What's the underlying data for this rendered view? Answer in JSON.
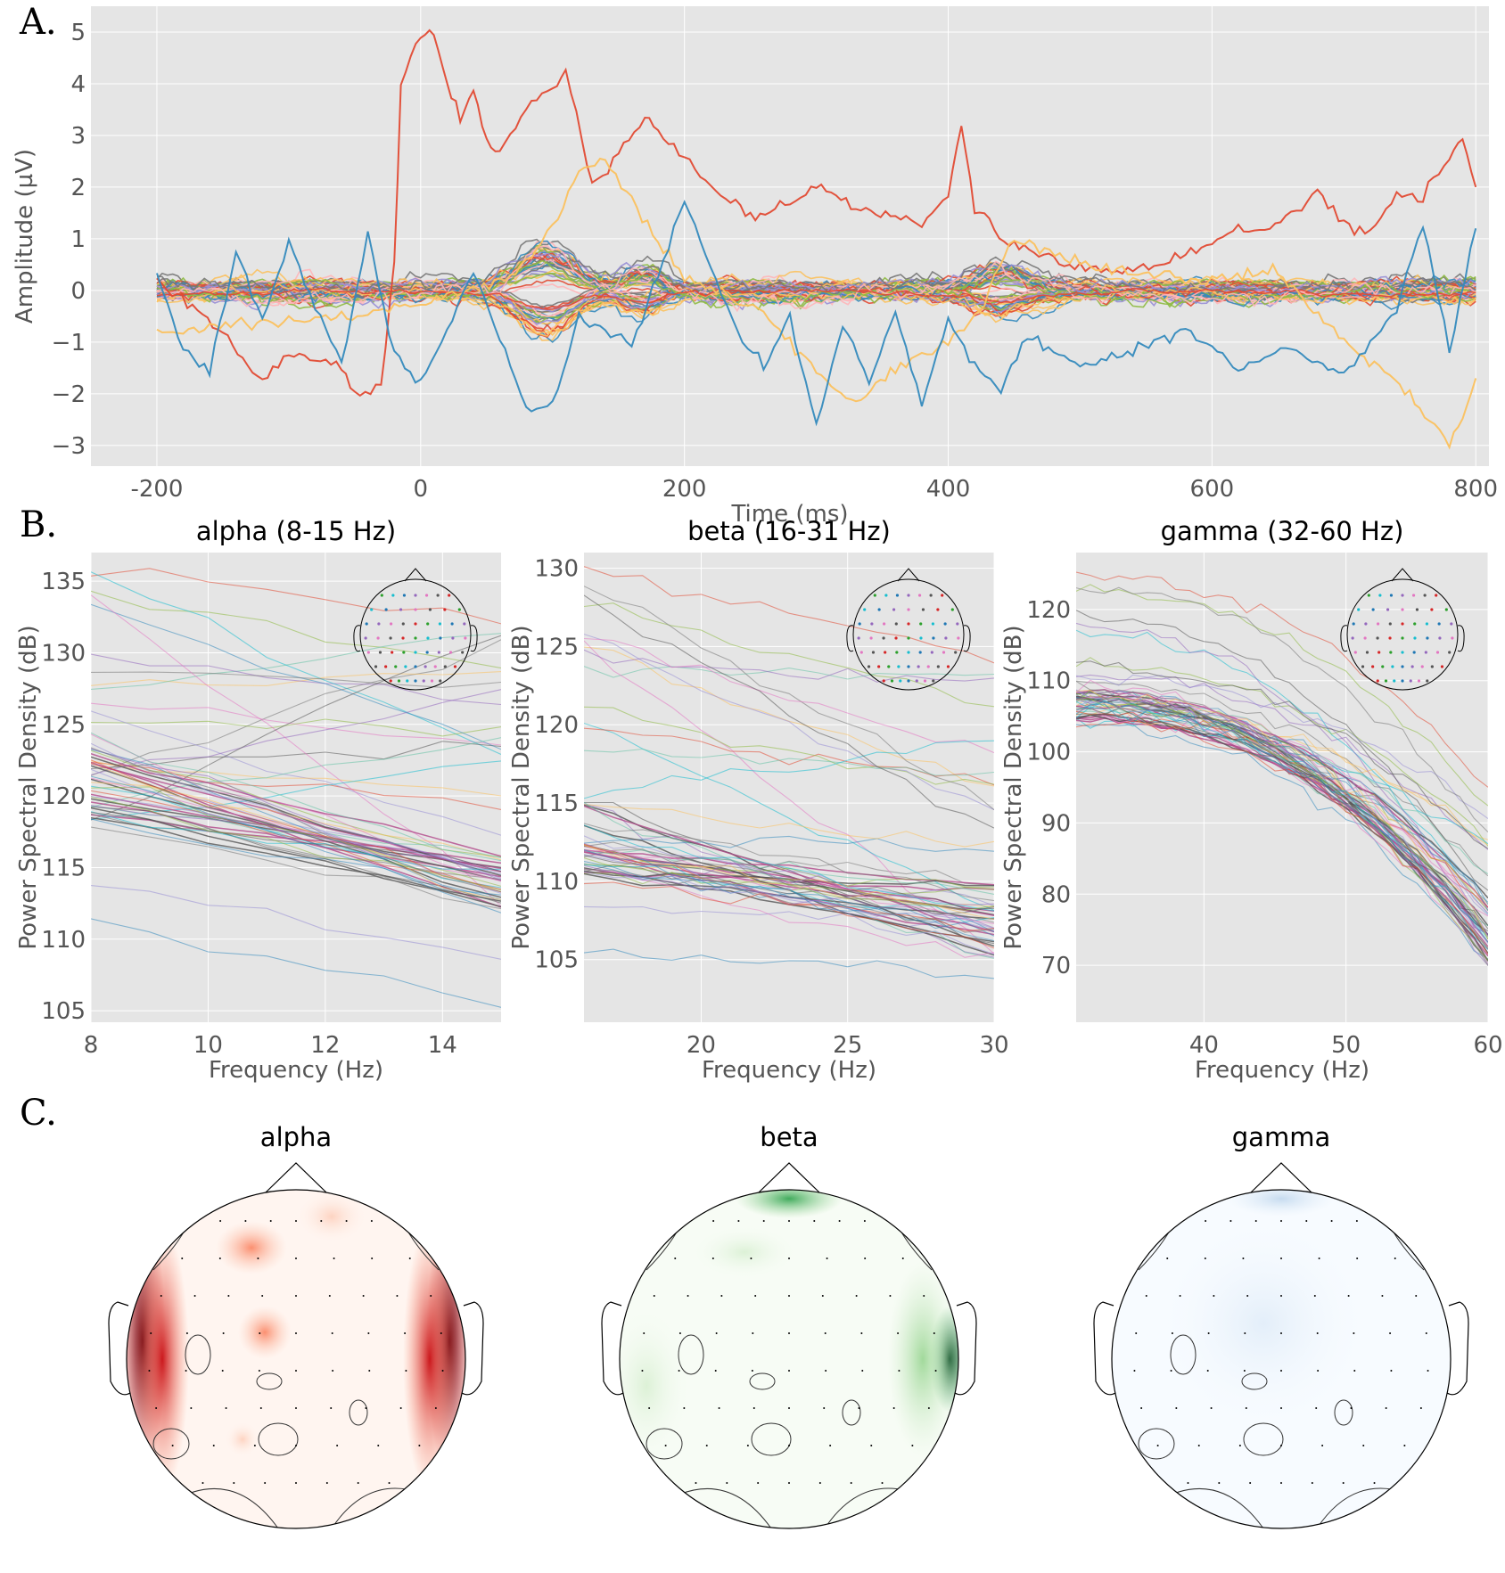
{
  "panel_labels": [
    "A.",
    "B.",
    "C."
  ],
  "chart_data": [
    {
      "id": "A",
      "type": "line",
      "xlabel": "Time (ms)",
      "ylabel": "Amplitude (µV)",
      "xlim": [
        -250,
        810
      ],
      "ylim": [
        -3.4,
        5.5
      ],
      "xticks": [
        -200,
        0,
        200,
        400,
        600,
        800
      ],
      "xtick_labels": [
        "-200",
        "0",
        "200",
        "400",
        "600",
        "800"
      ],
      "yticks": [
        -3,
        -2,
        -1,
        0,
        1,
        2,
        3,
        4,
        5
      ],
      "ytick_labels": [
        "−3",
        "−2",
        "−1",
        "0",
        "1",
        "2",
        "3",
        "4",
        "5"
      ],
      "grid": true,
      "n_channels": 64,
      "highlight_series": [
        {
          "color": "#e24a33",
          "x": [
            -200,
            -150,
            -120,
            -100,
            -60,
            -50,
            -30,
            -20,
            -15,
            0,
            10,
            20,
            30,
            40,
            50,
            60,
            80,
            100,
            110,
            130,
            150,
            170,
            180,
            200,
            220,
            250,
            280,
            300,
            330,
            360,
            380,
            400,
            410,
            420,
            450,
            480,
            500,
            520,
            540,
            560,
            580,
            600,
            620,
            640,
            660,
            680,
            700,
            720,
            740,
            760,
            780,
            790,
            800
          ],
          "y": [
            0.2,
            -0.8,
            -1.8,
            -1.2,
            -1.5,
            -2.0,
            -1.9,
            0.5,
            4.0,
            5.0,
            4.9,
            4.0,
            3.4,
            3.9,
            2.9,
            2.7,
            3.5,
            3.9,
            4.3,
            2.0,
            2.6,
            3.4,
            3.1,
            2.6,
            2.0,
            1.4,
            1.7,
            2.0,
            1.6,
            1.4,
            1.3,
            1.8,
            3.2,
            1.6,
            0.8,
            0.6,
            0.5,
            0.4,
            0.4,
            0.5,
            0.7,
            0.9,
            1.2,
            1.1,
            1.5,
            1.9,
            1.3,
            1.1,
            1.9,
            1.8,
            2.6,
            3.0,
            2.0
          ]
        },
        {
          "color": "#fbc15e",
          "x": [
            -200,
            -100,
            0,
            60,
            80,
            100,
            120,
            140,
            160,
            180,
            200,
            240,
            260,
            300,
            330,
            360,
            400,
            420,
            450,
            500,
            560,
            600,
            650,
            700,
            750,
            780,
            790,
            800
          ],
          "y": [
            -0.8,
            -0.6,
            -0.3,
            0.2,
            0.5,
            1.2,
            2.3,
            2.5,
            1.8,
            0.9,
            0.3,
            -0.2,
            -0.4,
            -1.6,
            -2.2,
            -1.5,
            -1.0,
            -0.5,
            1.0,
            0.5,
            0.3,
            0.2,
            0.4,
            -1.0,
            -2.0,
            -3.0,
            -2.5,
            -1.7
          ]
        },
        {
          "color": "#348abd",
          "x": [
            -200,
            -180,
            -160,
            -140,
            -120,
            -100,
            -80,
            -60,
            -40,
            -20,
            0,
            40,
            80,
            100,
            120,
            160,
            200,
            240,
            260,
            280,
            300,
            320,
            340,
            360,
            380,
            400,
            420,
            440,
            460,
            500,
            540,
            580,
            620,
            660,
            700,
            740,
            760,
            780,
            800
          ],
          "y": [
            0.3,
            -1.1,
            -1.6,
            0.8,
            -0.6,
            0.9,
            -0.3,
            -1.4,
            1.0,
            -1.2,
            -1.8,
            0.4,
            -2.2,
            -2.3,
            -0.5,
            -1.1,
            1.7,
            -0.8,
            -1.5,
            -0.5,
            -2.6,
            -0.7,
            -1.8,
            -0.4,
            -2.2,
            -0.6,
            -1.4,
            -1.9,
            -0.9,
            -1.5,
            -1.2,
            -0.8,
            -1.5,
            -1.1,
            -1.6,
            -0.4,
            1.3,
            -1.2,
            1.2
          ]
        }
      ],
      "note_bundle": "remaining channels fluctuate roughly between -1 and 1 around 0"
    },
    {
      "id": "B1",
      "type": "line",
      "title": "alpha (8-15 Hz)",
      "xlabel": "Frequency (Hz)",
      "ylabel": "Power Spectral Density (dB)",
      "xlim": [
        8,
        15
      ],
      "ylim": [
        104.2,
        137
      ],
      "xticks": [
        8,
        10,
        12,
        14
      ],
      "yticks": [
        105,
        110,
        115,
        120,
        125,
        130,
        135
      ],
      "dense_range_start": [
        118,
        124
      ],
      "dense_range_end": [
        112,
        116
      ],
      "outlier_top": [
        136,
        132
      ],
      "outlier_bottom": [
        111,
        105.5
      ]
    },
    {
      "id": "B2",
      "type": "line",
      "title": "beta (16-31 Hz)",
      "xlabel": "Frequency (Hz)",
      "ylabel": "Power Spectral Density (dB)",
      "xlim": [
        16,
        30
      ],
      "ylim": [
        101,
        131
      ],
      "xticks": [
        20,
        25,
        30
      ],
      "yticks": [
        105,
        110,
        115,
        120,
        125,
        130
      ],
      "dense_range_start": [
        110,
        115
      ],
      "dense_range_end": [
        105,
        110
      ],
      "outlier_top": [
        130,
        124
      ],
      "outlier_bottom": [
        105.5,
        104
      ]
    },
    {
      "id": "B3",
      "type": "line",
      "title": "gamma (32-60 Hz)",
      "xlabel": "Frequency (Hz)",
      "ylabel": "Power Spectral Density (dB)",
      "xlim": [
        31,
        60
      ],
      "ylim": [
        62,
        128
      ],
      "xticks": [
        40,
        50,
        60
      ],
      "yticks": [
        70,
        80,
        90,
        100,
        110,
        120
      ],
      "dense_range_start": [
        104,
        109
      ],
      "dense_range_end": [
        70,
        80
      ],
      "outlier_top": [
        125,
        95
      ],
      "outlier_bottom": [
        104,
        70
      ]
    },
    {
      "id": "C",
      "type": "heatmap",
      "panels": [
        {
          "title": "alpha",
          "cmap": "Reds"
        },
        {
          "title": "beta",
          "cmap": "Greens"
        },
        {
          "title": "gamma",
          "cmap": "Blues"
        }
      ]
    }
  ],
  "colors": {
    "axes_bg": "#e5e5e5",
    "grid": "#ffffff",
    "palette": [
      "#e24a33",
      "#348abd",
      "#988ed5",
      "#777777",
      "#fbc15e",
      "#8eba42",
      "#ffb5b8"
    ]
  }
}
